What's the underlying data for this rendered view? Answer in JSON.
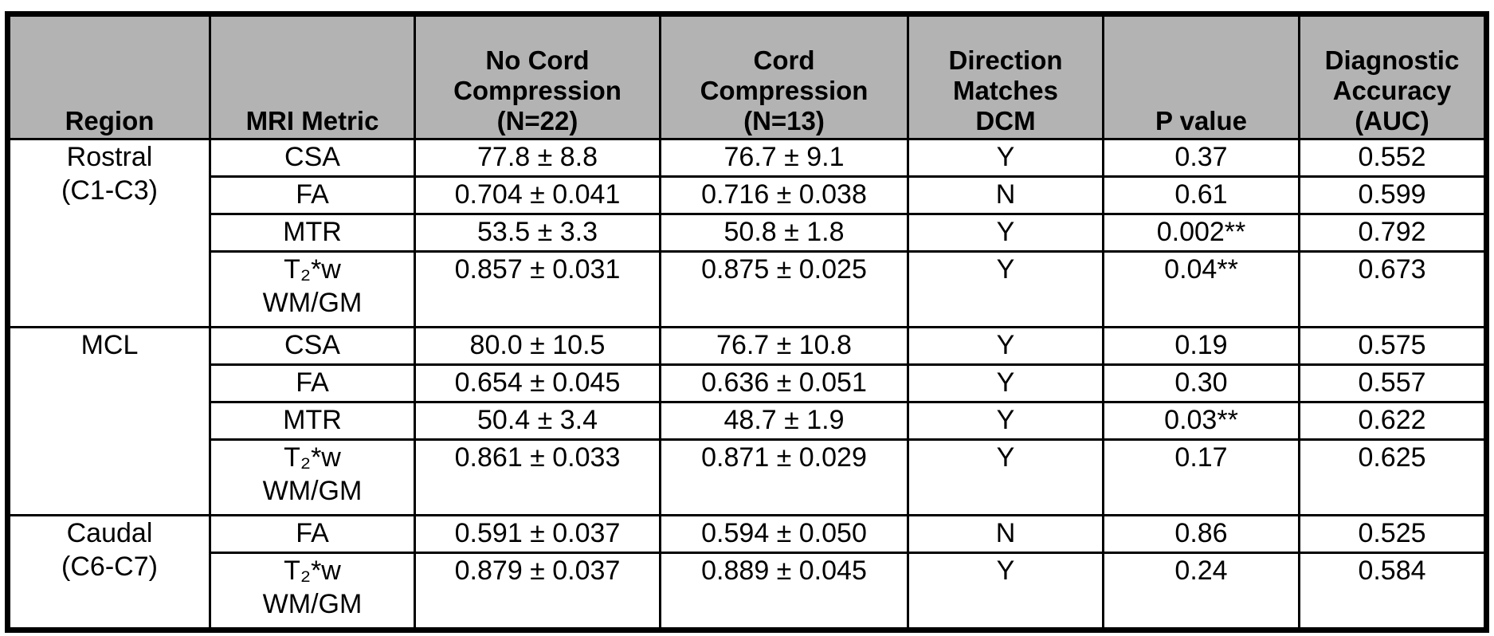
{
  "headers": [
    "Region",
    "MRI Metric",
    "No Cord\nCompression\n(N=22)",
    "Cord\nCompression\n(N=13)",
    "Direction\nMatches\nDCM\n",
    "P value",
    "Diagnostic\nAccuracy\n(AUC)"
  ],
  "regions": [
    {
      "name": "Rostral\n(C1-C3)",
      "rows": [
        {
          "metric": "CSA",
          "no_compression": "77.8 ± 8.8",
          "compression": "76.7 ± 9.1",
          "direction": "Y",
          "p": "0.37",
          "auc": "0.552"
        },
        {
          "metric": "FA",
          "no_compression": "0.704 ± 0.041",
          "compression": "0.716 ± 0.038",
          "direction": "N",
          "p": "0.61",
          "auc": "0.599"
        },
        {
          "metric": "MTR",
          "no_compression": "53.5 ± 3.3",
          "compression": "50.8 ± 1.8",
          "direction": "Y",
          "p": "0.002**",
          "auc": "0.792"
        },
        {
          "metric": "T₂*w\nWM/GM",
          "no_compression": "0.857 ± 0.031",
          "compression": "0.875 ± 0.025",
          "direction": "Y",
          "p": "0.04**",
          "auc": "0.673"
        }
      ]
    },
    {
      "name": "MCL",
      "rows": [
        {
          "metric": "CSA",
          "no_compression": "80.0 ± 10.5",
          "compression": "76.7 ± 10.8",
          "direction": "Y",
          "p": "0.19",
          "auc": "0.575"
        },
        {
          "metric": "FA",
          "no_compression": "0.654 ± 0.045",
          "compression": "0.636 ± 0.051",
          "direction": "Y",
          "p": "0.30",
          "auc": "0.557"
        },
        {
          "metric": "MTR",
          "no_compression": "50.4 ± 3.4",
          "compression": "48.7 ± 1.9",
          "direction": "Y",
          "p": "0.03**",
          "auc": "0.622"
        },
        {
          "metric": "T₂*w\nWM/GM",
          "no_compression": "0.861 ± 0.033",
          "compression": "0.871 ± 0.029",
          "direction": "Y",
          "p": "0.17",
          "auc": "0.625"
        }
      ]
    },
    {
      "name": "Caudal\n(C6-C7)",
      "rows": [
        {
          "metric": "FA",
          "no_compression": "0.591 ± 0.037",
          "compression": "0.594 ± 0.050",
          "direction": "N",
          "p": "0.86",
          "auc": "0.525"
        },
        {
          "metric": "T₂*w\nWM/GM",
          "no_compression": "0.879 ± 0.037",
          "compression": "0.889 ± 0.045",
          "direction": "Y",
          "p": "0.24",
          "auc": "0.584"
        }
      ]
    }
  ]
}
